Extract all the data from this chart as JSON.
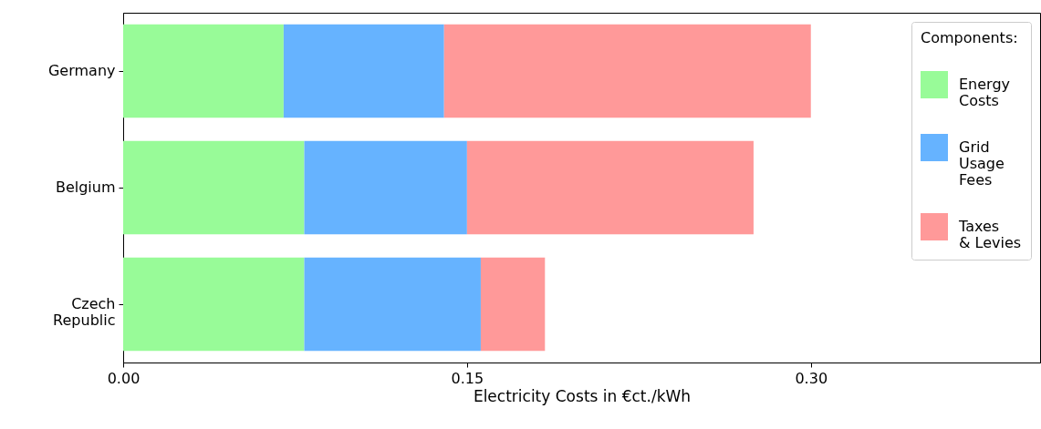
{
  "chart_data": {
    "type": "bar",
    "orientation": "horizontal",
    "stacked": true,
    "xlabel": "Electricity Costs in €ct./kWh",
    "legend_title": "Components:",
    "legend": "top right",
    "grid": false,
    "categories": [
      "Germany",
      "Belgium",
      "Czech\nRepublic"
    ],
    "series": [
      {
        "name": "Energy\nCosts",
        "color": "#98fb98",
        "values": [
          0.07,
          0.079,
          0.079
        ]
      },
      {
        "name": "Grid\nUsage\nFees",
        "color": "#66b3ff",
        "values": [
          0.07,
          0.071,
          0.077
        ]
      },
      {
        "name": "Taxes\n& Levies",
        "color": "#ff9999",
        "values": [
          0.16,
          0.125,
          0.028
        ]
      }
    ],
    "xlim": [
      0,
      0.4
    ],
    "xticks": [
      {
        "value": 0,
        "label": "0.00"
      },
      {
        "value": 0.15,
        "label": "0.15"
      },
      {
        "value": 0.3,
        "label": "0.30"
      }
    ]
  }
}
